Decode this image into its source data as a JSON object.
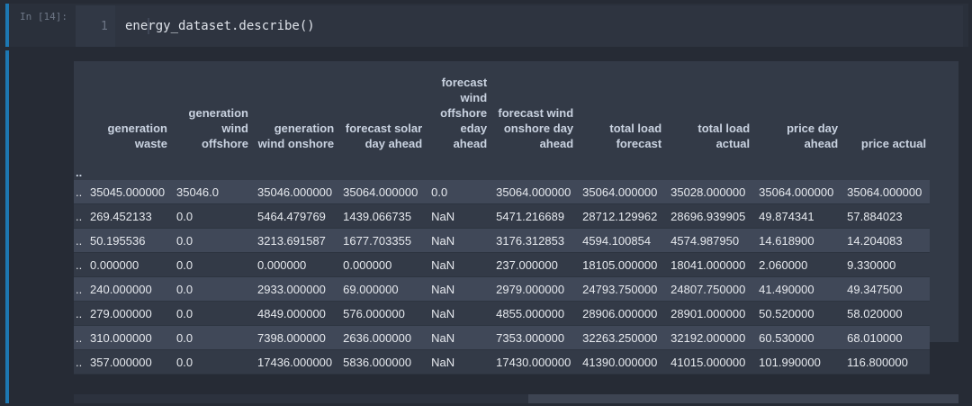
{
  "cell": {
    "prompt": "In [14]:",
    "line_number": "1",
    "code": "energy_dataset.describe()"
  },
  "table": {
    "columns": [
      "..",
      "generation waste",
      "generation wind offshore",
      "generation wind onshore",
      "forecast solar day ahead",
      "forecast wind offshore eday ahead",
      "forecast wind onshore day ahead",
      "total load forecast",
      "total load actual",
      "price day ahead",
      "price actual"
    ],
    "rows": [
      [
        "..",
        "35045.000000",
        "35046.0",
        "35046.000000",
        "35064.000000",
        "0.0",
        "35064.000000",
        "35064.000000",
        "35028.000000",
        "35064.000000",
        "35064.000000"
      ],
      [
        "..",
        "269.452133",
        "0.0",
        "5464.479769",
        "1439.066735",
        "NaN",
        "5471.216689",
        "28712.129962",
        "28696.939905",
        "49.874341",
        "57.884023"
      ],
      [
        "..",
        "50.195536",
        "0.0",
        "3213.691587",
        "1677.703355",
        "NaN",
        "3176.312853",
        "4594.100854",
        "4574.987950",
        "14.618900",
        "14.204083"
      ],
      [
        "..",
        "0.000000",
        "0.0",
        "0.000000",
        "0.000000",
        "NaN",
        "237.000000",
        "18105.000000",
        "18041.000000",
        "2.060000",
        "9.330000"
      ],
      [
        "..",
        "240.000000",
        "0.0",
        "2933.000000",
        "69.000000",
        "NaN",
        "2979.000000",
        "24793.750000",
        "24807.750000",
        "41.490000",
        "49.347500"
      ],
      [
        "..",
        "279.000000",
        "0.0",
        "4849.000000",
        "576.000000",
        "NaN",
        "4855.000000",
        "28906.000000",
        "28901.000000",
        "50.520000",
        "58.020000"
      ],
      [
        "..",
        "310.000000",
        "0.0",
        "7398.000000",
        "2636.000000",
        "NaN",
        "7353.000000",
        "32263.250000",
        "32192.000000",
        "60.530000",
        "68.010000"
      ],
      [
        "..",
        "357.000000",
        "0.0",
        "17436.000000",
        "5836.000000",
        "NaN",
        "17430.000000",
        "41390.000000",
        "41015.000000",
        "101.990000",
        "116.800000"
      ]
    ]
  },
  "colors": {
    "background": "#262b35",
    "cell_accent": "#1d78b3",
    "row_striped": "#404858",
    "row_plain": "#333a47"
  }
}
